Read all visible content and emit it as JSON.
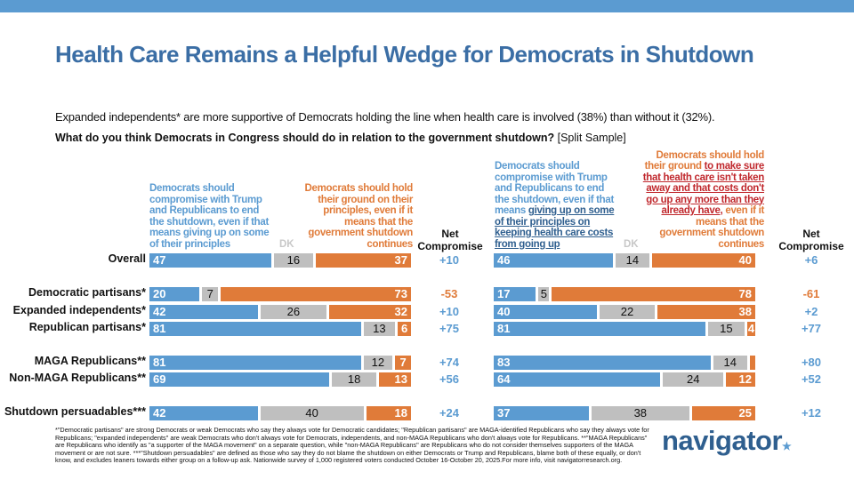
{
  "title": "Health Care Remains a Helpful Wedge for Democrats in Shutdown",
  "subtitle": "Expanded independents* are more supportive of Democrats holding the line when health care is involved (38%) than without it (32%).",
  "question": "What do you think Democrats in Congress should do in relation to the government shutdown?",
  "question_note": " [Split Sample]",
  "colors": {
    "compromise": "#5b9bd1",
    "dk": "#bfbfbf",
    "hold": "#e07b39",
    "title": "#3b6ea5",
    "underline_red": "#c0282d"
  },
  "chart_data": [
    {
      "type": "bar",
      "stacked": true,
      "orientation": "horizontal",
      "headers": {
        "compromise": "Democrats should compromise with Trump and Republicans to end the shutdown, even if that means giving up on some of their principles",
        "dk": "DK",
        "hold": "Democrats should hold their ground on their principles, even if it means that the government shutdown continues",
        "net": "Net Compromise"
      },
      "categories": [
        "Overall",
        "Democratic partisans*",
        "Expanded independents*",
        "Republican partisans*",
        "MAGA Republicans**",
        "Non-MAGA Republicans**",
        "Shutdown persuadables***"
      ],
      "series": [
        {
          "name": "compromise",
          "values": [
            47,
            20,
            42,
            81,
            81,
            69,
            42
          ]
        },
        {
          "name": "DK",
          "values": [
            16,
            7,
            26,
            13,
            12,
            18,
            40
          ]
        },
        {
          "name": "hold",
          "values": [
            37,
            73,
            32,
            6,
            7,
            13,
            18
          ]
        }
      ],
      "net": [
        "+10",
        "-53",
        "+10",
        "+75",
        "+74",
        "+56",
        "+24"
      ]
    },
    {
      "type": "bar",
      "stacked": true,
      "orientation": "horizontal",
      "headers": {
        "compromise_a": "Democrats should compromise with Trump and Republicans to end the shutdown, even if that means ",
        "compromise_b": "giving up on some of their principles on keeping health care costs from going up",
        "dk": "DK",
        "hold_a": "Democrats should hold their ground ",
        "hold_b": "to make sure that health care isn't taken away and that costs don't go up any more than they already have,",
        "hold_c": " even if it means that the government shutdown continues",
        "net": "Net Compromise"
      },
      "series": [
        {
          "name": "compromise",
          "values": [
            46,
            17,
            40,
            81,
            83,
            64,
            37
          ]
        },
        {
          "name": "DK",
          "values": [
            14,
            5,
            22,
            15,
            14,
            24,
            38
          ]
        },
        {
          "name": "hold",
          "values": [
            40,
            78,
            38,
            4,
            3,
            12,
            25
          ]
        }
      ],
      "net": [
        "+6",
        "-61",
        "+2",
        "+77",
        "+80",
        "+52",
        "+12"
      ]
    }
  ],
  "footnote": "*\"Democratic partisans\" are strong Democrats or weak Democrats who say they always vote for Democratic candidates; \"Republican partisans\" are MAGA-identified Republicans who say they always vote for Republicans; \"expanded independents\" are weak Democrats who don't always vote for Democrats, independents, and non-MAGA Republicans who don't always vote for Republicans. **\"MAGA Republicans\" are Republicans who identify as \"a supporter of the MAGA movement\" on a separate question, while \"non-MAGA Republicans\" are Republicans who do not consider themselves supporters of the MAGA movement or are not sure. ***\"Shutdown persuadables\" are defined as those who say they do not blame the shutdown on either Democrats or Trump and Republicans, blame both of these equally, or don't know, and excludes leaners towards either group on a follow-up ask. Nationwide survey of 1,000 registered voters conducted October 16-October 20, 2025.For more info, visit navigatorresearch.org.",
  "logo": "navigator"
}
